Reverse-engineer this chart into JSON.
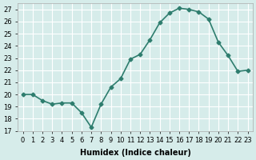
{
  "x": [
    0,
    1,
    2,
    3,
    4,
    5,
    6,
    7,
    8,
    9,
    10,
    11,
    12,
    13,
    14,
    15,
    16,
    17,
    18,
    19,
    20,
    21,
    22,
    23
  ],
  "y": [
    20.0,
    20.0,
    19.5,
    19.2,
    19.3,
    19.3,
    18.5,
    17.3,
    19.2,
    20.6,
    21.3,
    22.9,
    23.3,
    24.5,
    25.9,
    26.7,
    27.1,
    27.0,
    26.8,
    26.2,
    24.3,
    23.2,
    21.9,
    22.0
  ],
  "line_color": "#2e7d6e",
  "marker": "D",
  "marker_size": 2.5,
  "bg_color": "#d6ecea",
  "grid_color": "#ffffff",
  "xlabel": "Humidex (Indice chaleur)",
  "ylim": [
    17,
    27.5
  ],
  "xlim": [
    -0.5,
    23.5
  ],
  "yticks": [
    17,
    18,
    19,
    20,
    21,
    22,
    23,
    24,
    25,
    26,
    27
  ],
  "xticks": [
    0,
    1,
    2,
    3,
    4,
    5,
    6,
    7,
    8,
    9,
    10,
    11,
    12,
    13,
    14,
    15,
    16,
    17,
    18,
    19,
    20,
    21,
    22,
    23
  ],
  "xtick_labels": [
    "0",
    "1",
    "2",
    "3",
    "4",
    "5",
    "6",
    "7",
    "8",
    "9",
    "10",
    "11",
    "12",
    "13",
    "14",
    "15",
    "16",
    "17",
    "18",
    "19",
    "20",
    "21",
    "22",
    "23"
  ],
  "axis_fontsize": 7,
  "tick_fontsize": 6,
  "line_width": 1.2
}
